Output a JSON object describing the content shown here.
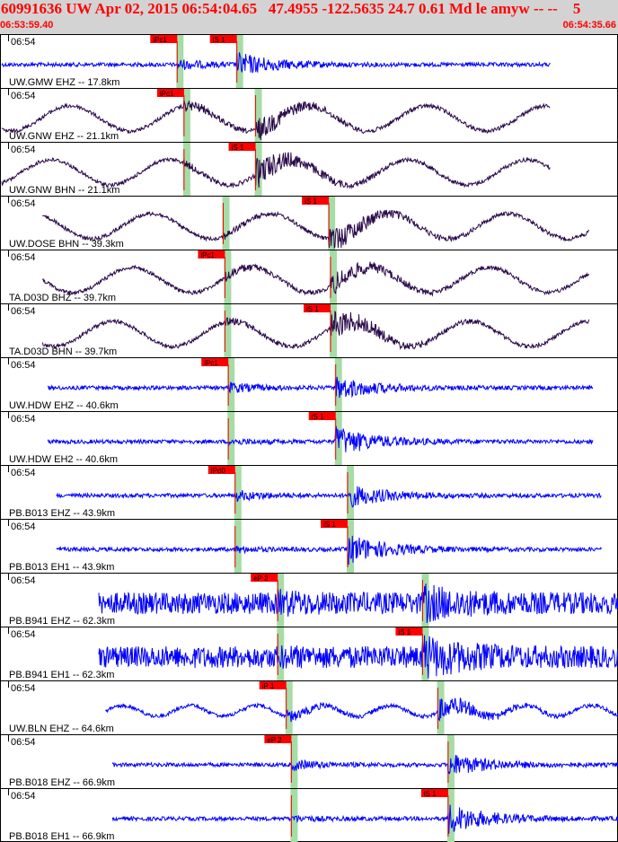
{
  "header": {
    "title": "60991636 UW Apr 02, 2015 06:54:04.65   47.4955 -122.5635 24.7 0.61 Md le amyw -- --    5",
    "start_time": "06:53:59.40",
    "end_time": "06:54:35.66"
  },
  "colors": {
    "header_bg": "#d3d3d3",
    "header_text": "#ff0000",
    "trace_blue": "#0000ff",
    "trace_dark": "#2a0a4a",
    "pick_flag": "#ff0000",
    "pick_band": "#a6dca6",
    "frame": "#000000"
  },
  "chart_data": {
    "type": "line",
    "x_axis": {
      "start": "06:53:59.40",
      "end": "06:54:35.66",
      "tick_label": "06:54"
    },
    "series": [
      {
        "label": "UW.GMW EHZ -- 17.8km",
        "style": "blue",
        "trace_start_s": 0.1,
        "trace_end_s": 32.3,
        "picks": [
          {
            "label": "iPc1",
            "time_s": 10.4
          },
          {
            "label": "iS 1",
            "time_s": 13.9
          }
        ]
      },
      {
        "label": "UW.GNW EHZ -- 21.1km",
        "style": "dark",
        "trace_start_s": 0.1,
        "trace_end_s": 32.3,
        "picks": [
          {
            "label": "iPc1",
            "time_s": 10.8
          },
          {
            "label": "",
            "time_s": 15.0
          }
        ]
      },
      {
        "label": "UW.GNW BHN -- 21.1km",
        "style": "dark",
        "trace_start_s": 0.1,
        "trace_end_s": 32.3,
        "picks": [
          {
            "label": "",
            "time_s": 10.8
          },
          {
            "label": "iS 1",
            "time_s": 15.0
          }
        ]
      },
      {
        "label": "UW.DOSE BHN -- 39.3km",
        "style": "dark",
        "trace_start_s": 2.5,
        "trace_end_s": 34.6,
        "picks": [
          {
            "label": "",
            "time_s": 13.1
          },
          {
            "label": "iS 1",
            "time_s": 19.3
          }
        ]
      },
      {
        "label": "TA.D03D BHZ -- 39.7km",
        "style": "dark",
        "trace_start_s": 2.5,
        "trace_end_s": 34.6,
        "picks": [
          {
            "label": "iPc1",
            "time_s": 13.2
          },
          {
            "label": "",
            "time_s": 19.4
          }
        ]
      },
      {
        "label": "TA.D03D BHN -- 39.7km",
        "style": "dark",
        "trace_start_s": 2.5,
        "trace_end_s": 34.6,
        "picks": [
          {
            "label": "",
            "time_s": 13.2
          },
          {
            "label": "iS 1",
            "time_s": 19.4
          }
        ]
      },
      {
        "label": "UW.HDW EHZ -- 40.6km",
        "style": "blue",
        "trace_start_s": 2.8,
        "trace_end_s": 34.8,
        "picks": [
          {
            "label": "iPc1",
            "time_s": 13.4
          },
          {
            "label": "",
            "time_s": 19.7
          }
        ]
      },
      {
        "label": "UW.HDW EH2 -- 40.6km",
        "style": "blue",
        "trace_start_s": 2.8,
        "trace_end_s": 34.8,
        "picks": [
          {
            "label": "",
            "time_s": 13.4
          },
          {
            "label": "iS 1",
            "time_s": 19.7
          }
        ]
      },
      {
        "label": "PB.B013 EHZ -- 43.9km",
        "style": "blue",
        "trace_start_s": 3.3,
        "trace_end_s": 35.3,
        "picks": [
          {
            "label": "iPd0",
            "time_s": 13.8
          },
          {
            "label": "",
            "time_s": 20.4
          }
        ]
      },
      {
        "label": "PB.B013 EH1 -- 43.9km",
        "style": "blue",
        "trace_start_s": 3.3,
        "trace_end_s": 35.3,
        "picks": [
          {
            "label": "",
            "time_s": 13.8
          },
          {
            "label": "iS 1",
            "time_s": 20.4
          }
        ]
      },
      {
        "label": "PB.B941 EHZ -- 62.3km",
        "style": "blue",
        "trace_start_s": 5.8,
        "trace_end_s": 37.8,
        "picks": [
          {
            "label": "eP 2",
            "time_s": 16.3
          },
          {
            "label": "",
            "time_s": 24.8
          }
        ]
      },
      {
        "label": "PB.B941 EH1 -- 62.3km",
        "style": "blue",
        "trace_start_s": 5.8,
        "trace_end_s": 37.8,
        "picks": [
          {
            "label": "",
            "time_s": 16.3
          },
          {
            "label": "iS 1",
            "time_s": 24.8
          }
        ]
      },
      {
        "label": "UW.BLN EHZ -- 64.6km",
        "style": "blue",
        "trace_start_s": 6.2,
        "trace_end_s": 38.2,
        "picks": [
          {
            "label": "iP 1",
            "time_s": 16.8
          },
          {
            "label": "",
            "time_s": 25.7
          }
        ]
      },
      {
        "label": "PB.B018 EHZ -- 66.9km",
        "style": "blue",
        "trace_start_s": 6.6,
        "trace_end_s": 38.6,
        "picks": [
          {
            "label": "eP 2",
            "time_s": 17.1
          },
          {
            "label": "",
            "time_s": 26.3
          }
        ]
      },
      {
        "label": "PB.B018 EH1 -- 66.9km",
        "style": "blue",
        "trace_start_s": 6.6,
        "trace_end_s": 38.6,
        "picks": [
          {
            "label": "",
            "time_s": 17.1
          },
          {
            "label": "iS 1",
            "time_s": 26.3
          }
        ]
      }
    ]
  }
}
